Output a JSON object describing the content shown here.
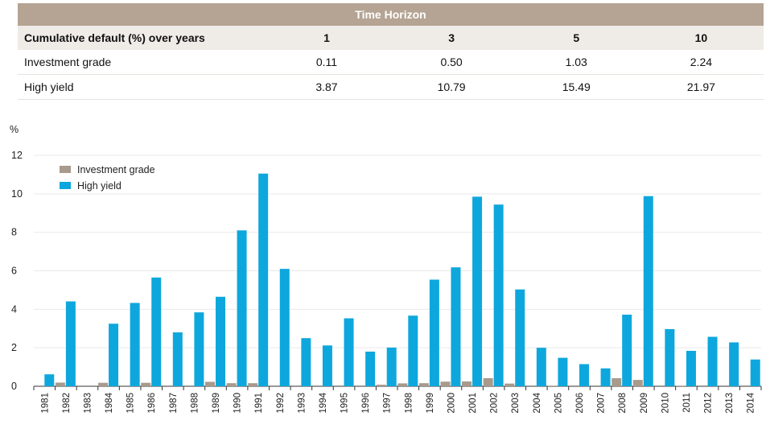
{
  "table": {
    "band_title": "Time Horizon",
    "header": [
      "Cumulative default (%) over years",
      "1",
      "3",
      "5",
      "10"
    ],
    "rows": [
      [
        "Investment grade",
        "0.11",
        "0.50",
        "1.03",
        "2.24"
      ],
      [
        "High yield",
        "3.87",
        "10.79",
        "15.49",
        "21.97"
      ]
    ]
  },
  "chart_data": {
    "type": "bar",
    "ylabel": "%",
    "ylim": [
      0,
      12
    ],
    "yticks": [
      0,
      2,
      4,
      6,
      8,
      10,
      12
    ],
    "categories": [
      "1981",
      "1982",
      "1983",
      "1984",
      "1985",
      "1986",
      "1987",
      "1988",
      "1989",
      "1990",
      "1991",
      "1992",
      "1993",
      "1994",
      "1995",
      "1996",
      "1997",
      "1998",
      "1999",
      "2000",
      "2001",
      "2002",
      "2003",
      "2004",
      "2005",
      "2006",
      "2007",
      "2008",
      "2009",
      "2010",
      "2011",
      "2012",
      "2013",
      "2014"
    ],
    "series": [
      {
        "name": "Investment grade",
        "color": "#a89a8c",
        "values": [
          0.0,
          0.19,
          0.0,
          0.18,
          0.0,
          0.18,
          0.0,
          0.0,
          0.23,
          0.16,
          0.16,
          0.0,
          0.0,
          0.0,
          0.0,
          0.0,
          0.08,
          0.15,
          0.16,
          0.24,
          0.25,
          0.42,
          0.14,
          0.0,
          0.03,
          0.0,
          0.0,
          0.42,
          0.33,
          0.0,
          0.03,
          0.0,
          0.0,
          0.0
        ]
      },
      {
        "name": "High yield",
        "color": "#0ea7dd",
        "values": [
          0.62,
          4.41,
          0.0,
          3.25,
          4.33,
          5.65,
          2.8,
          3.84,
          4.65,
          8.1,
          11.05,
          6.1,
          2.5,
          2.12,
          3.53,
          1.8,
          2.01,
          3.67,
          5.54,
          6.18,
          9.85,
          9.44,
          5.03,
          2.0,
          1.48,
          1.15,
          0.93,
          3.72,
          9.88,
          2.97,
          1.84,
          2.57,
          2.28,
          1.39
        ]
      }
    ],
    "legend": "top-left",
    "grid": true
  }
}
